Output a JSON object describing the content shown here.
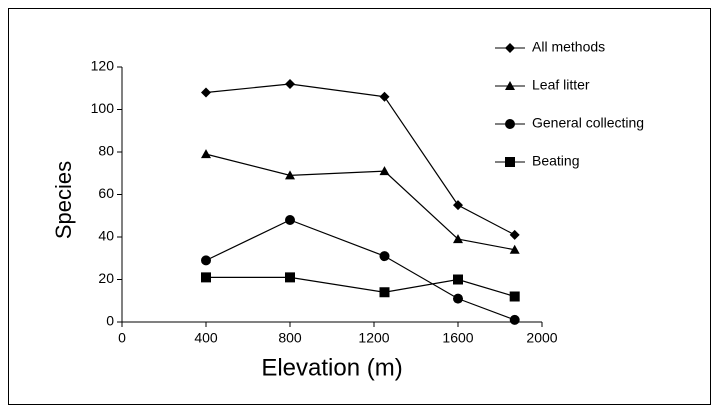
{
  "chart_data": {
    "type": "line",
    "xlabel": "Elevation (m)",
    "ylabel": "Species",
    "x": [
      400,
      800,
      1250,
      1600,
      1870
    ],
    "series": [
      {
        "name": "All methods",
        "color": "#000000",
        "marker": "diamond",
        "values": [
          108,
          112,
          106,
          55,
          41
        ]
      },
      {
        "name": "Leaf litter",
        "color": "#000000",
        "marker": "triangle",
        "values": [
          79,
          69,
          71,
          39,
          34
        ]
      },
      {
        "name": "General collecting",
        "color": "#000000",
        "marker": "circle",
        "values": [
          29,
          48,
          31,
          11,
          1
        ]
      },
      {
        "name": "Beating",
        "color": "#000000",
        "marker": "square",
        "values": [
          21,
          21,
          14,
          20,
          12
        ]
      }
    ],
    "xlim": [
      0,
      2000
    ],
    "xticks": [
      0,
      400,
      800,
      1200,
      1600,
      2000
    ],
    "ylim": [
      0,
      120
    ],
    "yticks": [
      0,
      20,
      40,
      60,
      80,
      100,
      120
    ],
    "grid": false,
    "legend": "upper right"
  }
}
